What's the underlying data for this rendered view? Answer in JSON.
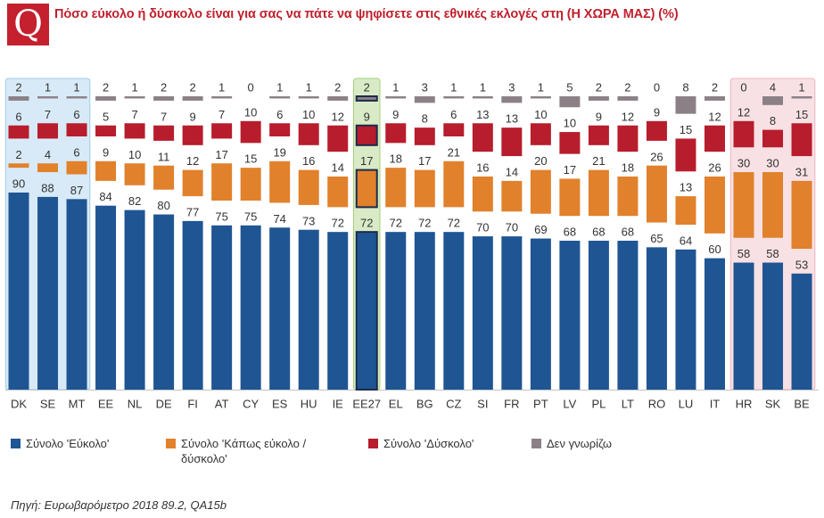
{
  "header": {
    "logo_letter": "Q"
  },
  "chart_data": {
    "type": "bar",
    "stacked": true,
    "title": "Πόσο εύκολο ή δύσκολο είναι για σας να πάτε να ψηφίσετε στις εθνικές εκλογές στη (Η ΧΩΡΑ ΜΑΣ) (%)",
    "xlabel": "",
    "ylabel": "",
    "ylim": [
      0,
      100
    ],
    "categories": [
      "DK",
      "SE",
      "MT",
      "EE",
      "NL",
      "DE",
      "FI",
      "AT",
      "CY",
      "ES",
      "HU",
      "IE",
      "EE27",
      "EL",
      "BG",
      "CZ",
      "SI",
      "FR",
      "PT",
      "LV",
      "PL",
      "LT",
      "RO",
      "LU",
      "IT",
      "HR",
      "SK",
      "BE"
    ],
    "series": [
      {
        "name": "Σύνολο 'Εύκολο'",
        "color": "#1f5593",
        "values": [
          90,
          88,
          87,
          84,
          82,
          80,
          77,
          75,
          75,
          74,
          73,
          72,
          72,
          72,
          72,
          72,
          70,
          70,
          69,
          68,
          68,
          68,
          65,
          64,
          60,
          58,
          58,
          53
        ]
      },
      {
        "name": "Σύνολο 'Κάπως εύκολο / δύσκολο'",
        "color": "#e1812c",
        "values": [
          2,
          4,
          6,
          9,
          10,
          11,
          12,
          17,
          15,
          19,
          16,
          14,
          17,
          18,
          17,
          21,
          16,
          14,
          20,
          17,
          21,
          18,
          26,
          13,
          26,
          30,
          30,
          31
        ]
      },
      {
        "name": "Σύνολο 'Δύσκολο'",
        "color": "#b71d2c",
        "values": [
          6,
          7,
          6,
          5,
          7,
          7,
          9,
          7,
          10,
          6,
          10,
          12,
          9,
          9,
          8,
          6,
          13,
          13,
          10,
          10,
          9,
          12,
          9,
          15,
          12,
          12,
          8,
          15
        ]
      },
      {
        "name": "Δεν γνωρίζω",
        "color": "#8c8087",
        "values": [
          2,
          1,
          1,
          2,
          1,
          2,
          2,
          1,
          0,
          1,
          1,
          2,
          2,
          1,
          3,
          1,
          1,
          3,
          1,
          5,
          2,
          2,
          0,
          8,
          2,
          0,
          4,
          1
        ]
      }
    ],
    "highlight_groups": [
      {
        "from": 0,
        "to": 2,
        "fill": "#d8eaf7",
        "border": "#9fcbed"
      },
      {
        "from": 12,
        "to": 12,
        "fill": "#d9ebc6",
        "border": "#a5cf79"
      },
      {
        "from": 25,
        "to": 27,
        "fill": "#f8e1e4",
        "border": "#efb3bd"
      }
    ],
    "emphasized_index": 12,
    "emphasis_color": "#1b2b4c",
    "legend_position": "bottom"
  },
  "source": "Πηγή: Ευρωβαρόμετρο 2018 89.2, QA15b"
}
